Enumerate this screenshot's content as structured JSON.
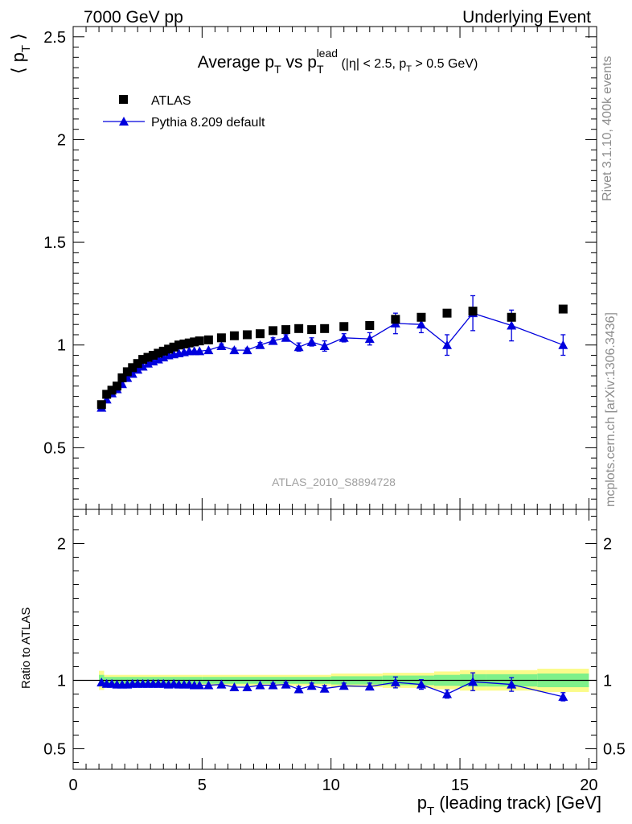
{
  "header": {
    "left": "7000 GeV pp",
    "right": "Underlying Event"
  },
  "side_text": {
    "top": "Rivet 3.1.10,  400k events",
    "bottom": "mcplots.cern.ch [arXiv:1306.3436]"
  },
  "analysis_id": "ATLAS_2010_S8894728",
  "colors": {
    "data": "#000000",
    "mc": "#0000dd",
    "band_inner": "#7ff08a",
    "band_outer": "#fbfb8a"
  },
  "chart_data": [
    {
      "type": "scatter",
      "title": "Average p_T vs p_T^lead (|η| < 2.5, p_T > 0.5 GeV)",
      "title_parts": {
        "main": "Average p",
        "sub1": "T",
        "mid": " vs p",
        "sub2": "T",
        "sup2": "lead",
        "cuts_a": " (|η| < 2.5, p",
        "cuts_sub": "T",
        "cuts_b": " > 0.5 GeV)"
      },
      "ylabel": "⟨ p_T ⟩",
      "ylabel_parts": {
        "open": "⟨ p",
        "sub": "T",
        "close": " ⟩"
      },
      "xlim": [
        0,
        20.3
      ],
      "ylim": [
        0.2,
        2.55
      ],
      "yticks": [
        0.5,
        1,
        1.5,
        2,
        2.5
      ],
      "ytick_labels": [
        "0.5",
        "1",
        "1.5",
        "2",
        "2.5"
      ],
      "legend": {
        "position": "top-left",
        "entries": [
          "ATLAS",
          "Pythia 8.209 default"
        ]
      },
      "series": [
        {
          "name": "ATLAS",
          "marker": "square",
          "x": [
            1.1,
            1.3,
            1.5,
            1.7,
            1.9,
            2.1,
            2.3,
            2.5,
            2.7,
            2.9,
            3.1,
            3.3,
            3.5,
            3.7,
            3.9,
            4.1,
            4.3,
            4.5,
            4.7,
            4.9,
            5.25,
            5.75,
            6.25,
            6.75,
            7.25,
            7.75,
            8.25,
            8.75,
            9.25,
            9.75,
            10.5,
            11.5,
            12.5,
            13.5,
            14.5,
            15.5,
            17.0,
            19.0
          ],
          "y": [
            0.71,
            0.76,
            0.78,
            0.8,
            0.84,
            0.87,
            0.89,
            0.91,
            0.93,
            0.94,
            0.95,
            0.96,
            0.97,
            0.98,
            0.99,
            1.0,
            1.005,
            1.01,
            1.015,
            1.02,
            1.025,
            1.035,
            1.045,
            1.05,
            1.055,
            1.07,
            1.075,
            1.08,
            1.075,
            1.08,
            1.09,
            1.095,
            1.125,
            1.135,
            1.155,
            1.165,
            1.135,
            1.175
          ]
        },
        {
          "name": "Pythia 8.209 default",
          "marker": "triangle",
          "x": [
            1.1,
            1.3,
            1.5,
            1.7,
            1.9,
            2.1,
            2.3,
            2.5,
            2.7,
            2.9,
            3.1,
            3.3,
            3.5,
            3.7,
            3.9,
            4.1,
            4.3,
            4.5,
            4.7,
            4.9,
            5.25,
            5.75,
            6.25,
            6.75,
            7.25,
            7.75,
            8.25,
            8.75,
            9.25,
            9.75,
            10.5,
            11.5,
            12.5,
            13.5,
            14.5,
            15.5,
            17.0,
            19.0
          ],
          "y": [
            0.695,
            0.735,
            0.765,
            0.785,
            0.81,
            0.84,
            0.86,
            0.88,
            0.895,
            0.91,
            0.92,
            0.93,
            0.94,
            0.95,
            0.955,
            0.96,
            0.965,
            0.97,
            0.97,
            0.97,
            0.975,
            0.995,
            0.975,
            0.975,
            1.0,
            1.02,
            1.035,
            0.99,
            1.015,
            0.995,
            1.035,
            1.03,
            1.105,
            1.1,
            1.0,
            1.155,
            1.095,
            1.0
          ],
          "yerr": [
            0.005,
            0.005,
            0.005,
            0.005,
            0.005,
            0.005,
            0.005,
            0.005,
            0.005,
            0.005,
            0.005,
            0.005,
            0.005,
            0.005,
            0.005,
            0.005,
            0.005,
            0.005,
            0.005,
            0.005,
            0.007,
            0.01,
            0.01,
            0.01,
            0.012,
            0.015,
            0.015,
            0.02,
            0.02,
            0.025,
            0.02,
            0.03,
            0.05,
            0.04,
            0.05,
            0.085,
            0.075,
            0.05
          ]
        }
      ]
    },
    {
      "type": "scatter",
      "ylabel": "Ratio to ATLAS",
      "xlabel": "p_T (leading track) [GeV]",
      "xlabel_parts": {
        "main": "p",
        "sub": "T",
        "rest": " (leading track) [GeV]"
      },
      "xlim": [
        0,
        20.3
      ],
      "ylim": [
        0.35,
        2.25
      ],
      "xticks": [
        0,
        5,
        10,
        15,
        20
      ],
      "xtick_labels": [
        "0",
        "5",
        "10",
        "15",
        "20"
      ],
      "yticks": [
        0.5,
        1,
        2
      ],
      "ytick_labels": [
        "0.5",
        "1",
        "2"
      ],
      "right_tick_labels": [
        "0.5",
        "1",
        "2"
      ],
      "bands": {
        "edges": [
          1.0,
          1.2,
          5.0,
          10.0,
          12.0,
          14.0,
          15.0,
          16.0,
          18.0,
          20.0
        ],
        "inner": [
          0.04,
          0.025,
          0.025,
          0.03,
          0.035,
          0.04,
          0.045,
          0.045,
          0.05
        ],
        "outer": [
          0.07,
          0.04,
          0.04,
          0.05,
          0.055,
          0.065,
          0.075,
          0.075,
          0.085
        ]
      },
      "series": [
        {
          "name": "Pythia 8.209 default",
          "x": [
            1.1,
            1.3,
            1.5,
            1.7,
            1.9,
            2.1,
            2.3,
            2.5,
            2.7,
            2.9,
            3.1,
            3.3,
            3.5,
            3.7,
            3.9,
            4.1,
            4.3,
            4.5,
            4.7,
            4.9,
            5.25,
            5.75,
            6.25,
            6.75,
            7.25,
            7.75,
            8.25,
            8.75,
            9.25,
            9.75,
            10.5,
            11.5,
            12.5,
            13.5,
            14.5,
            15.5,
            17.0,
            19.0
          ],
          "y": [
            0.985,
            0.975,
            0.975,
            0.97,
            0.97,
            0.97,
            0.975,
            0.975,
            0.975,
            0.975,
            0.975,
            0.975,
            0.975,
            0.97,
            0.975,
            0.97,
            0.97,
            0.97,
            0.965,
            0.965,
            0.965,
            0.97,
            0.95,
            0.95,
            0.965,
            0.965,
            0.97,
            0.935,
            0.96,
            0.94,
            0.96,
            0.955,
            0.985,
            0.97,
            0.9,
            0.99,
            0.97,
            0.88
          ],
          "yerr": [
            0.008,
            0.007,
            0.007,
            0.007,
            0.007,
            0.007,
            0.007,
            0.007,
            0.007,
            0.007,
            0.007,
            0.007,
            0.007,
            0.007,
            0.007,
            0.007,
            0.007,
            0.007,
            0.007,
            0.007,
            0.008,
            0.01,
            0.01,
            0.01,
            0.012,
            0.014,
            0.015,
            0.02,
            0.02,
            0.022,
            0.02,
            0.025,
            0.04,
            0.035,
            0.03,
            0.065,
            0.05,
            0.03
          ]
        }
      ]
    }
  ]
}
